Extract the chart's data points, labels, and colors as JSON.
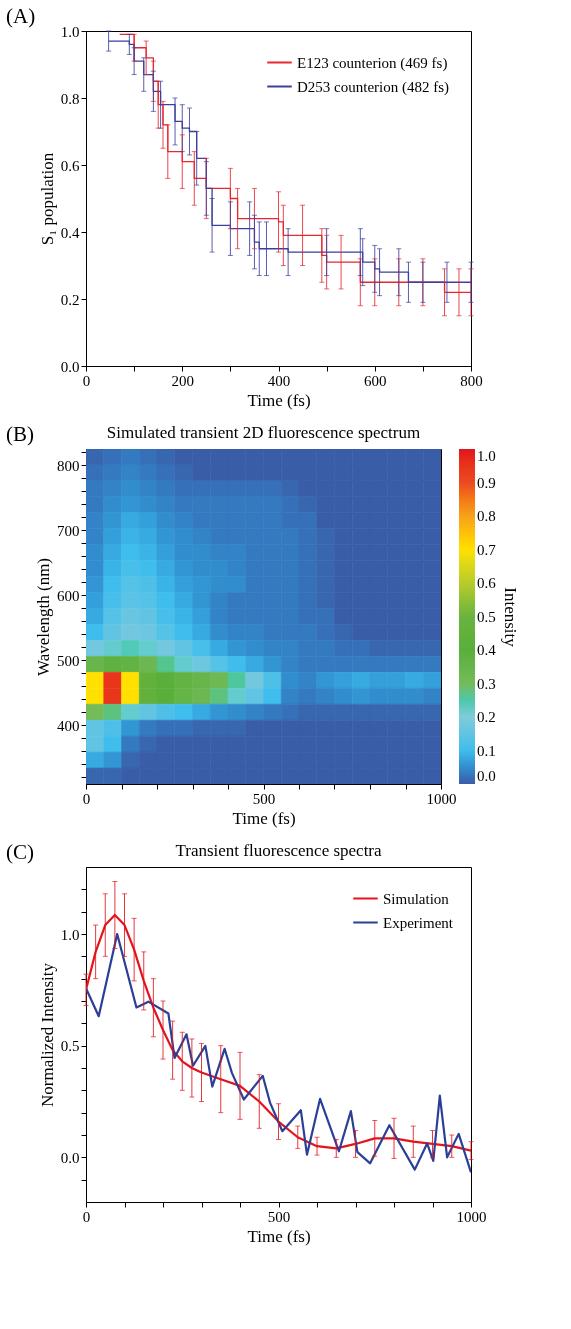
{
  "chart_data": [
    {
      "type": "step",
      "xlabel": "Time (fs)",
      "ylabel": "S₁ population",
      "annotations": [
        "(A)"
      ],
      "legend": "top right",
      "grid": false,
      "xlim": [
        0,
        800
      ],
      "ylim": [
        0.0,
        1.0
      ],
      "xticks": [
        0,
        {
          "value": 100,
          "label": null
        },
        200,
        {
          "value": 300,
          "label": null
        },
        400,
        {
          "value": 500,
          "label": null
        },
        600,
        {
          "value": 700,
          "label": null
        },
        800
      ],
      "yticks": [
        {
          "value": 0,
          "label": "0.0"
        },
        0.2,
        0.4,
        0.6,
        0.8,
        {
          "value": 1,
          "label": "1.0"
        }
      ],
      "series": [
        {
          "name": "E123 counterion  (469 fs)",
          "color": "#e8262e",
          "x": [
            70,
            100,
            125,
            140,
            150,
            160,
            170,
            200,
            225,
            250,
            300,
            315,
            350,
            400,
            410,
            450,
            490,
            500,
            530,
            570,
            600,
            650,
            700,
            745,
            775,
            800
          ],
          "values": [
            0.99,
            0.95,
            0.92,
            0.85,
            0.78,
            0.72,
            0.64,
            0.61,
            0.56,
            0.53,
            0.5,
            0.44,
            0.44,
            0.43,
            0.39,
            0.39,
            0.33,
            0.31,
            0.31,
            0.25,
            0.25,
            0.25,
            0.25,
            0.22,
            0.22,
            0.22
          ],
          "errors": [
            null,
            0.04,
            0.05,
            0.06,
            0.07,
            0.07,
            0.08,
            0.08,
            0.08,
            0.09,
            0.09,
            0.09,
            0.09,
            0.09,
            0.09,
            0.09,
            0.08,
            0.08,
            0.08,
            0.07,
            0.07,
            0.07,
            0.07,
            0.07,
            0.07,
            0.07
          ]
        },
        {
          "name": "D253 counterion  (482 fs)",
          "color": "#3b3f9e",
          "x": [
            47,
            90,
            100,
            120,
            140,
            155,
            185,
            200,
            215,
            230,
            250,
            262,
            300,
            340,
            350,
            360,
            375,
            420,
            500,
            570,
            575,
            600,
            610,
            650,
            670,
            700,
            750,
            800
          ],
          "values": [
            0.97,
            0.96,
            0.91,
            0.87,
            0.82,
            0.78,
            0.73,
            0.71,
            0.7,
            0.62,
            0.53,
            0.42,
            0.41,
            0.41,
            0.37,
            0.35,
            0.35,
            0.34,
            0.34,
            0.34,
            0.31,
            0.29,
            0.28,
            0.28,
            0.25,
            0.25,
            0.25,
            0.25
          ],
          "errors": [
            0.03,
            0.03,
            0.04,
            0.05,
            0.06,
            0.07,
            0.07,
            0.07,
            0.07,
            0.08,
            0.08,
            0.08,
            0.08,
            0.08,
            0.08,
            0.08,
            0.08,
            0.07,
            0.07,
            0.07,
            0.07,
            0.07,
            0.07,
            0.07,
            0.06,
            0.06,
            0.06,
            0.06
          ]
        }
      ]
    },
    {
      "type": "heatmap",
      "title": "Simulated transient 2D fluorescence spectrum",
      "xlabel": "Time (fs)",
      "ylabel": "Wavelength (nm)",
      "clabel": "Intensity",
      "annotations": [
        "(B)"
      ],
      "xlim": [
        0,
        1000
      ],
      "ylim": [
        310,
        825
      ],
      "clim": [
        0.0,
        1.0
      ],
      "xticks": [
        0,
        {
          "value": 100,
          "label": null
        },
        {
          "value": 200,
          "label": null
        },
        {
          "value": 300,
          "label": null
        },
        {
          "value": 400,
          "label": null
        },
        500,
        {
          "value": 600,
          "label": null
        },
        {
          "value": 700,
          "label": null
        },
        {
          "value": 800,
          "label": null
        },
        {
          "value": 900,
          "label": null
        },
        1000
      ],
      "yticks": [
        {
          "value": 320,
          "label": null
        },
        {
          "value": 340,
          "label": null
        },
        {
          "value": 360,
          "label": null
        },
        {
          "value": 380,
          "label": null
        },
        400,
        {
          "value": 420,
          "label": null
        },
        {
          "value": 440,
          "label": null
        },
        {
          "value": 460,
          "label": null
        },
        {
          "value": 480,
          "label": null
        },
        500,
        {
          "value": 520,
          "label": null
        },
        {
          "value": 540,
          "label": null
        },
        {
          "value": 560,
          "label": null
        },
        {
          "value": 580,
          "label": null
        },
        600,
        {
          "value": 620,
          "label": null
        },
        {
          "value": 640,
          "label": null
        },
        {
          "value": 660,
          "label": null
        },
        {
          "value": 680,
          "label": null
        },
        700,
        {
          "value": 720,
          "label": null
        },
        {
          "value": 740,
          "label": null
        },
        {
          "value": 760,
          "label": null
        },
        {
          "value": 780,
          "label": null
        },
        800,
        {
          "value": 820,
          "label": null
        }
      ],
      "cticks": [
        {
          "value": 0,
          "label": "0.0"
        },
        0.1,
        0.2,
        0.3,
        0.4,
        0.5,
        0.6,
        0.7,
        0.8,
        0.9,
        {
          "value": 1,
          "label": "1.0"
        }
      ],
      "cells": [
        [
          0.01,
          0.02,
          0.03,
          0.02,
          0.01,
          0,
          0,
          0,
          0,
          0,
          0,
          0,
          0,
          0,
          0,
          0,
          0,
          0,
          0,
          0
        ],
        [
          0.02,
          0.03,
          0.04,
          0.03,
          0.02,
          0.01,
          0,
          0,
          0,
          0,
          0,
          0,
          0,
          0,
          0,
          0,
          0,
          0,
          0,
          0
        ],
        [
          0.03,
          0.04,
          0.05,
          0.04,
          0.03,
          0.02,
          0.02,
          0.02,
          0.02,
          0.02,
          0.02,
          0.01,
          0,
          0,
          0,
          0,
          0,
          0,
          0,
          0
        ],
        [
          0.03,
          0.05,
          0.06,
          0.05,
          0.04,
          0.03,
          0.03,
          0.03,
          0.03,
          0.03,
          0.03,
          0.02,
          0.01,
          0,
          0,
          0,
          0,
          0,
          0,
          0
        ],
        [
          0.04,
          0.06,
          0.08,
          0.07,
          0.05,
          0.04,
          0.03,
          0.03,
          0.03,
          0.03,
          0.03,
          0.02,
          0.02,
          0,
          0,
          0,
          0,
          0,
          0,
          0
        ],
        [
          0.04,
          0.07,
          0.09,
          0.08,
          0.06,
          0.05,
          0.04,
          0.03,
          0.03,
          0.03,
          0.03,
          0.03,
          0.02,
          0.01,
          0,
          0,
          0,
          0,
          0,
          0
        ],
        [
          0.05,
          0.08,
          0.1,
          0.09,
          0.07,
          0.05,
          0.05,
          0.04,
          0.04,
          0.03,
          0.03,
          0.03,
          0.02,
          0.01,
          0,
          0,
          0,
          0,
          0,
          0
        ],
        [
          0.05,
          0.09,
          0.11,
          0.1,
          0.08,
          0.06,
          0.05,
          0.05,
          0.04,
          0.03,
          0.03,
          0.03,
          0.02,
          0.01,
          0,
          0,
          0,
          0,
          0,
          0
        ],
        [
          0.06,
          0.1,
          0.13,
          0.12,
          0.09,
          0.07,
          0.06,
          0.05,
          0.05,
          0.03,
          0.03,
          0.03,
          0.02,
          0.01,
          0,
          0,
          0,
          0,
          0,
          0
        ],
        [
          0.07,
          0.11,
          0.14,
          0.13,
          0.1,
          0.08,
          0.06,
          0.04,
          0.03,
          0.03,
          0.03,
          0.03,
          0.02,
          0.01,
          0,
          0,
          0,
          0,
          0,
          0
        ],
        [
          0.08,
          0.13,
          0.16,
          0.15,
          0.11,
          0.09,
          0.07,
          0.04,
          0.03,
          0.03,
          0.03,
          0.03,
          0.02,
          0.02,
          0,
          0,
          0,
          0,
          0,
          0
        ],
        [
          0.1,
          0.15,
          0.18,
          0.17,
          0.13,
          0.1,
          0.08,
          0.05,
          0.04,
          0.04,
          0.03,
          0.03,
          0.03,
          0.02,
          0.01,
          0,
          0,
          0,
          0,
          0
        ],
        [
          0.18,
          0.22,
          0.24,
          0.22,
          0.18,
          0.15,
          0.11,
          0.08,
          0.06,
          0.05,
          0.04,
          0.04,
          0.03,
          0.03,
          0.02,
          0.02,
          0.01,
          0.01,
          0.01,
          0.01
        ],
        [
          0.35,
          0.38,
          0.37,
          0.33,
          0.27,
          0.22,
          0.17,
          0.13,
          0.1,
          0.08,
          0.06,
          0.04,
          0.03,
          0.03,
          0.03,
          0.03,
          0.03,
          0.03,
          0.03,
          0.03
        ],
        [
          0.7,
          0.95,
          0.7,
          0.45,
          0.4,
          0.37,
          0.35,
          0.32,
          0.26,
          0.18,
          0.12,
          0.05,
          0.04,
          0.06,
          0.07,
          0.08,
          0.07,
          0.07,
          0.08,
          0.07
        ],
        [
          0.7,
          0.95,
          0.7,
          0.45,
          0.4,
          0.36,
          0.33,
          0.28,
          0.22,
          0.15,
          0.1,
          0.04,
          0.03,
          0.04,
          0.05,
          0.06,
          0.05,
          0.05,
          0.05,
          0.04
        ],
        [
          0.3,
          0.28,
          0.22,
          0.15,
          0.12,
          0.1,
          0.08,
          0.06,
          0.05,
          0.04,
          0.03,
          0.02,
          0.01,
          0.01,
          0.01,
          0.01,
          0.01,
          0.01,
          0.01,
          0.01
        ],
        [
          0.15,
          0.12,
          0.06,
          0.03,
          0.02,
          0.02,
          0.01,
          0.01,
          0.01,
          0,
          0,
          0,
          0,
          0,
          0,
          0,
          0,
          0,
          0,
          0
        ],
        [
          0.15,
          0.1,
          0.03,
          0.01,
          0,
          0,
          0,
          0,
          0,
          0,
          0,
          0,
          0,
          0,
          0,
          0,
          0,
          0,
          0,
          0
        ],
        [
          0.08,
          0.06,
          0.01,
          0,
          0,
          0,
          0,
          0,
          0,
          0,
          0,
          0,
          0,
          0,
          0,
          0,
          0,
          0,
          0,
          0
        ],
        [
          0.01,
          0.01,
          0,
          0,
          0,
          0,
          0,
          0,
          0,
          0,
          0,
          0,
          0,
          0,
          0,
          0,
          0,
          0,
          0,
          0
        ]
      ]
    },
    {
      "type": "line",
      "title": "Transient fluorescence spectra",
      "xlabel": "Time (fs)",
      "ylabel": "Normalized Intensity",
      "annotations": [
        "(C)"
      ],
      "legend": "top right",
      "grid": false,
      "xlim": [
        0,
        1000
      ],
      "ylim": [
        -0.2,
        1.3
      ],
      "xticks": [
        0,
        {
          "value": 100,
          "label": null
        },
        {
          "value": 200,
          "label": null
        },
        {
          "value": 300,
          "label": null
        },
        {
          "value": 400,
          "label": null
        },
        500,
        {
          "value": 600,
          "label": null
        },
        {
          "value": 700,
          "label": null
        },
        {
          "value": 800,
          "label": null
        },
        {
          "value": 900,
          "label": null
        },
        1000
      ],
      "yticks": [
        {
          "value": -0.1,
          "label": null
        },
        {
          "value": 0,
          "label": "0.0"
        },
        {
          "value": 0.1,
          "label": null
        },
        {
          "value": 0.2,
          "label": null
        },
        {
          "value": 0.3,
          "label": null
        },
        {
          "value": 0.4,
          "label": null
        },
        0.5,
        {
          "value": 0.6,
          "label": null
        },
        {
          "value": 0.7,
          "label": null
        },
        {
          "value": 0.8,
          "label": null
        },
        {
          "value": 0.9,
          "label": null
        },
        {
          "value": 1,
          "label": "1.0"
        },
        {
          "value": 1.1,
          "label": null
        },
        {
          "value": 1.2,
          "label": null
        }
      ],
      "series": [
        {
          "name": "Simulation",
          "color": "#e3141b",
          "x": [
            0,
            25,
            50,
            75,
            100,
            125,
            150,
            175,
            200,
            225,
            250,
            275,
            300,
            350,
            400,
            450,
            500,
            550,
            600,
            650,
            700,
            750,
            800,
            850,
            900,
            950,
            1000
          ],
          "values": [
            0.75,
            0.92,
            1.04,
            1.085,
            1.04,
            0.93,
            0.79,
            0.67,
            0.57,
            0.48,
            0.43,
            0.4,
            0.38,
            0.35,
            0.32,
            0.25,
            0.16,
            0.09,
            0.05,
            0.04,
            0.06,
            0.085,
            0.085,
            0.07,
            0.06,
            0.05,
            0.03
          ],
          "errors": [
            0.07,
            0.12,
            0.14,
            0.15,
            0.14,
            0.14,
            0.13,
            0.13,
            0.13,
            0.13,
            0.13,
            0.13,
            0.13,
            0.15,
            0.15,
            0.12,
            0.08,
            0.05,
            0.04,
            0.04,
            0.06,
            0.08,
            0.09,
            0.07,
            0.06,
            0.05,
            0.04
          ]
        },
        {
          "name": "Experiment",
          "color": "#2b3f96",
          "x": [
            0,
            33,
            81,
            131,
            162,
            214,
            230,
            261,
            278,
            310,
            328,
            360,
            379,
            410,
            459,
            478,
            510,
            558,
            574,
            608,
            657,
            688,
            705,
            738,
            788,
            854,
            886,
            902,
            919,
            938,
            968,
            1000
          ],
          "values": [
            0.757,
            0.632,
            1.0,
            0.671,
            0.697,
            0.644,
            0.445,
            0.551,
            0.41,
            0.499,
            0.317,
            0.486,
            0.378,
            0.259,
            0.365,
            0.245,
            0.117,
            0.211,
            0.012,
            0.262,
            0.027,
            0.207,
            0.023,
            -0.027,
            0.144,
            -0.055,
            0.062,
            -0.016,
            0.276,
            0.0,
            0.105,
            -0.067
          ]
        }
      ]
    }
  ]
}
